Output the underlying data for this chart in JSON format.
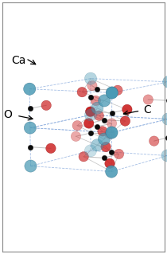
{
  "ca_color": "#4a9ab5",
  "c_color": "#0a0a0a",
  "o_color": "#cc2020",
  "bond_color": "#c0c0c0",
  "cell_color": "#88aadd",
  "ca_size": 120,
  "c_size": 22,
  "o_size": 80,
  "label_ca": "Ca",
  "label_o": "O",
  "label_c": "C",
  "label_fontsize": 10,
  "fig_width": 2.1,
  "fig_height": 3.19,
  "dpi": 100,
  "elev": 12,
  "azim": -75,
  "xlim": [
    -0.05,
    1.25
  ],
  "ylim": [
    -0.3,
    0.9
  ],
  "zlim": [
    -0.05,
    3.5
  ]
}
